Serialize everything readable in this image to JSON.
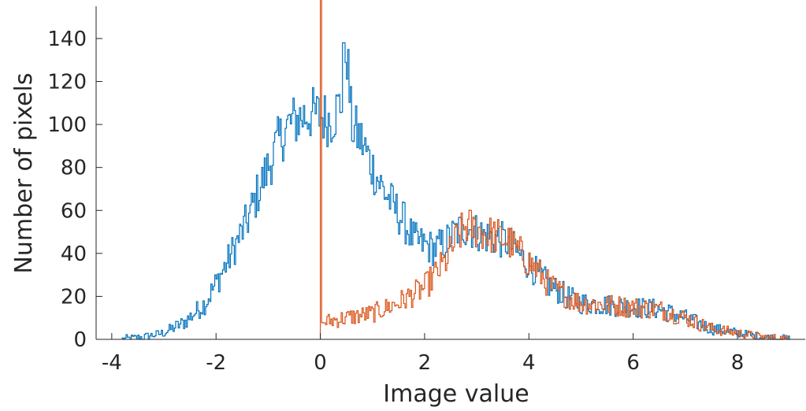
{
  "chart_data": {
    "type": "histogram",
    "xlabel": "Image value",
    "ylabel": "Number of pixels",
    "xlim": [
      -4.3,
      9.3
    ],
    "ylim": [
      0,
      155
    ],
    "grid": false,
    "xticks": [
      -4,
      -2,
      0,
      2,
      4,
      6,
      8
    ],
    "xtick_labels": [
      "-4",
      "-2",
      "0",
      "2",
      "4",
      "6",
      "8"
    ],
    "yticks": [
      0,
      20,
      40,
      60,
      80,
      100,
      120,
      140
    ],
    "ytick_labels": [
      "0",
      "20",
      "40",
      "60",
      "80",
      "100",
      "120",
      "140"
    ],
    "series": [
      {
        "color": "#0072BD",
        "profile_x": [
          -3.8,
          -3.4,
          -3.0,
          -2.6,
          -2.2,
          -1.8,
          -1.6,
          -1.4,
          -1.2,
          -1.0,
          -0.8,
          -0.6,
          -0.4,
          -0.2,
          0.0,
          0.2,
          0.4,
          0.5,
          0.6,
          0.8,
          1.0,
          1.2,
          1.4,
          1.6,
          1.8,
          2.0,
          2.2,
          2.4,
          2.6,
          2.8,
          3.0,
          3.2,
          3.4,
          3.6,
          3.8,
          4.0,
          4.2,
          4.4,
          4.6,
          4.8,
          5.0,
          5.5,
          6.0,
          6.5,
          7.0,
          7.5,
          8.0,
          8.5,
          9.0
        ],
        "profile_y": [
          0,
          1,
          3,
          8,
          17,
          35,
          45,
          55,
          68,
          80,
          92,
          100,
          103,
          105,
          104,
          102,
          110,
          138,
          100,
          92,
          80,
          70,
          62,
          55,
          46,
          44,
          42,
          45,
          50,
          52,
          50,
          48,
          47,
          45,
          40,
          35,
          30,
          25,
          22,
          19,
          17,
          16,
          15,
          14,
          10,
          5,
          3,
          1,
          0
        ],
        "spike_x": 0.45,
        "spike_y": 138
      },
      {
        "color": "#D95319",
        "profile_x": [
          0.0,
          0.05,
          0.5,
          1.0,
          1.5,
          2.0,
          2.4,
          2.6,
          2.8,
          3.0,
          3.2,
          3.4,
          3.6,
          3.8,
          4.0,
          4.2,
          4.4,
          4.6,
          4.8,
          5.0,
          5.5,
          6.0,
          6.5,
          7.0,
          7.5,
          8.0,
          8.5,
          9.0
        ],
        "profile_y": [
          0,
          8,
          10,
          12,
          17,
          24,
          36,
          46,
          53,
          51,
          49,
          48,
          46,
          41,
          36,
          31,
          25,
          22,
          19,
          17,
          16,
          15,
          14,
          10,
          5,
          3,
          1,
          0
        ],
        "spike_x": 0.0,
        "spike_y": 160
      }
    ]
  }
}
